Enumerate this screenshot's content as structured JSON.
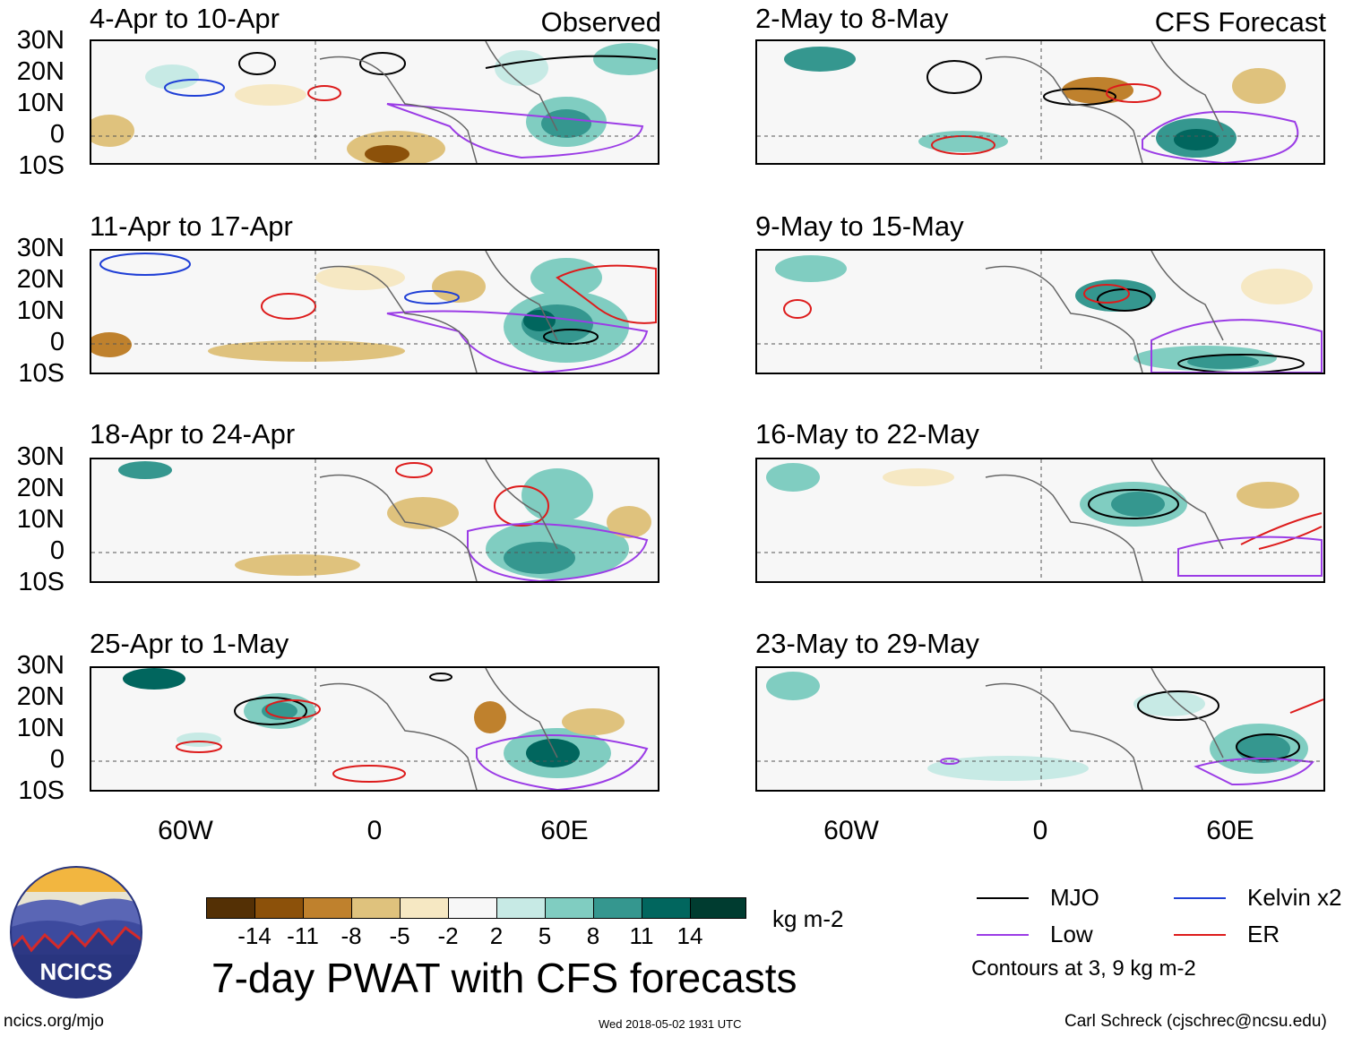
{
  "observed_label": "Observed",
  "forecast_label": "CFS Forecast",
  "latitude_labels": [
    "30N",
    "20N",
    "10N",
    "0",
    "10S"
  ],
  "longitude_labels": [
    "60W",
    "0",
    "60E"
  ],
  "left_panels": [
    {
      "title": "4-Apr to 10-Apr"
    },
    {
      "title": "11-Apr to 17-Apr"
    },
    {
      "title": "18-Apr to 24-Apr"
    },
    {
      "title": "25-Apr to 1-May"
    }
  ],
  "right_panels": [
    {
      "title": "2-May to 8-May"
    },
    {
      "title": "9-May to 15-May"
    },
    {
      "title": "16-May to 22-May"
    },
    {
      "title": "23-May to 29-May"
    }
  ],
  "colorbar": {
    "units": "kg m-2",
    "ticks": [
      "-14",
      "-11",
      "-8",
      "-5",
      "-2",
      "2",
      "5",
      "8",
      "11",
      "14"
    ],
    "colors": [
      "#543005",
      "#8c510a",
      "#bf812d",
      "#dfc27d",
      "#f6e8c3",
      "#f7f7f7",
      "#c7eae5",
      "#80cdc1",
      "#35978f",
      "#01665e",
      "#003c30"
    ]
  },
  "legend": {
    "items": [
      {
        "label": "MJO",
        "color": "#000000"
      },
      {
        "label": "Kelvin x2",
        "color": "#1f3fd6"
      },
      {
        "label": "Low",
        "color": "#9b3ce6"
      },
      {
        "label": "ER",
        "color": "#dd1b1b"
      }
    ],
    "note": "Contours at 3, 9 kg m-2"
  },
  "logo_text": "NCICS",
  "main_title": "7-day PWAT with CFS forecasts",
  "footer": {
    "url": "ncics.org/mjo",
    "timestamp": "Wed 2018-05-02 1931 UTC",
    "author": "Carl Schreck (cjschrec@ncsu.edu)"
  }
}
